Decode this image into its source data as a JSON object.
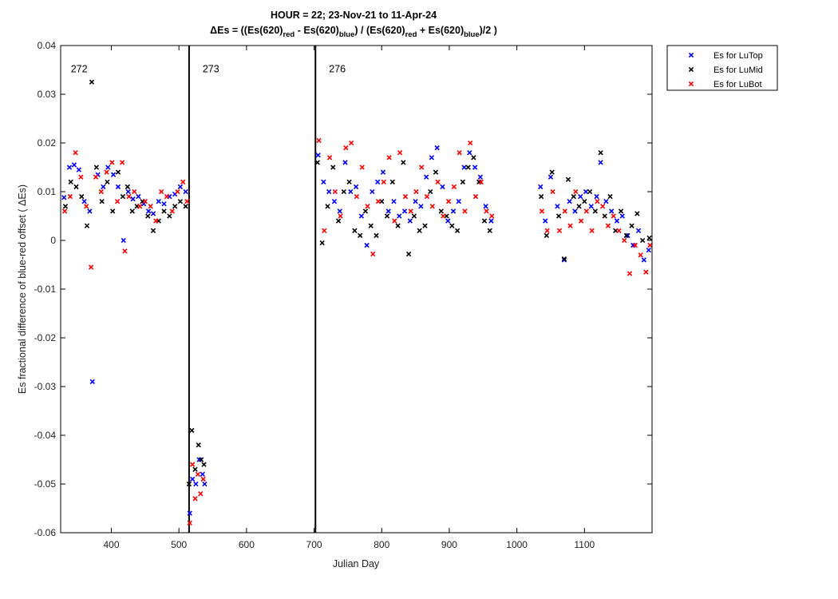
{
  "chart_data": {
    "type": "scatter",
    "title_line1": "HOUR = 22; 23-Nov-21 to 11-Apr-24",
    "title_line2": {
      "prefix": "ΔEs = ((Es(620)",
      "sub1": "red",
      "mid1": " - Es(620)",
      "sub2": "blue",
      "mid2": ") / (Es(620)",
      "sub3": "red",
      "mid3": " + Es(620)",
      "sub4": "blue",
      "suffix": ")/2  )"
    },
    "xlabel": "Julian Day",
    "ylabel": "Es fractional difference of blue-red offset (   ΔEs)",
    "xlim": [
      325,
      1200
    ],
    "ylim": [
      -0.06,
      0.04
    ],
    "xticks": [
      400,
      500,
      600,
      700,
      800,
      900,
      1000,
      1100
    ],
    "yticks": [
      -0.06,
      -0.05,
      -0.04,
      -0.03,
      -0.02,
      -0.01,
      0,
      0.01,
      0.02,
      0.03,
      0.04
    ],
    "ytick_labels": [
      "-0.06",
      "-0.05",
      "-0.04",
      "-0.03",
      "-0.02",
      "-0.01",
      "0",
      "0.01",
      "0.02",
      "0.03",
      "0.04"
    ],
    "grid": false,
    "legend_position": "outside-top-right",
    "vlines": [
      {
        "x": 515,
        "label": "273"
      },
      {
        "x": 702,
        "label": "276"
      }
    ],
    "annotations": [
      {
        "text": "272",
        "x": 340,
        "y": 0.0345
      },
      {
        "text": "273",
        "x": 535,
        "y": 0.0345
      },
      {
        "text": "276",
        "x": 722,
        "y": 0.0345
      }
    ],
    "series": [
      {
        "name": "Es for LuTop",
        "color": "#0000ff",
        "points": [
          [
            330,
            0.0088
          ],
          [
            338,
            0.015
          ],
          [
            345,
            0.0155
          ],
          [
            352,
            0.0145
          ],
          [
            360,
            0.008
          ],
          [
            368,
            0.006
          ],
          [
            372,
            -0.029
          ],
          [
            380,
            0.0135
          ],
          [
            388,
            0.011
          ],
          [
            395,
            0.015
          ],
          [
            403,
            0.0135
          ],
          [
            410,
            0.011
          ],
          [
            418,
            0.0
          ],
          [
            425,
            0.01
          ],
          [
            432,
            0.0085
          ],
          [
            440,
            0.009
          ],
          [
            448,
            0.0075
          ],
          [
            455,
            0.006
          ],
          [
            462,
            0.0055
          ],
          [
            470,
            0.008
          ],
          [
            478,
            0.0075
          ],
          [
            486,
            0.009
          ],
          [
            494,
            0.0095
          ],
          [
            502,
            0.011
          ],
          [
            510,
            0.01
          ],
          [
            516,
            -0.056
          ],
          [
            520,
            -0.049
          ],
          [
            525,
            -0.05
          ],
          [
            530,
            -0.045
          ],
          [
            535,
            -0.048
          ],
          [
            538,
            -0.05
          ],
          [
            706,
            0.0175
          ],
          [
            714,
            0.012
          ],
          [
            722,
            0.01
          ],
          [
            730,
            0.008
          ],
          [
            738,
            0.006
          ],
          [
            746,
            0.016
          ],
          [
            754,
            0.01
          ],
          [
            762,
            0.011
          ],
          [
            770,
            0.005
          ],
          [
            778,
            -0.001
          ],
          [
            786,
            0.01
          ],
          [
            794,
            0.012
          ],
          [
            802,
            0.014
          ],
          [
            810,
            0.006
          ],
          [
            818,
            0.008
          ],
          [
            826,
            0.005
          ],
          [
            834,
            0.006
          ],
          [
            842,
            0.004
          ],
          [
            850,
            0.008
          ],
          [
            858,
            0.007
          ],
          [
            866,
            0.013
          ],
          [
            874,
            0.017
          ],
          [
            882,
            0.019
          ],
          [
            890,
            0.011
          ],
          [
            898,
            0.004
          ],
          [
            906,
            0.006
          ],
          [
            914,
            0.008
          ],
          [
            922,
            0.015
          ],
          [
            930,
            0.018
          ],
          [
            938,
            0.015
          ],
          [
            946,
            0.013
          ],
          [
            954,
            0.007
          ],
          [
            962,
            0.004
          ],
          [
            1035,
            0.011
          ],
          [
            1042,
            0.004
          ],
          [
            1050,
            0.013
          ],
          [
            1060,
            0.007
          ],
          [
            1070,
            -0.004
          ],
          [
            1078,
            0.008
          ],
          [
            1086,
            0.006
          ],
          [
            1094,
            0.009
          ],
          [
            1102,
            0.01
          ],
          [
            1110,
            0.007
          ],
          [
            1118,
            0.009
          ],
          [
            1124,
            0.016
          ],
          [
            1132,
            0.008
          ],
          [
            1140,
            0.006
          ],
          [
            1148,
            0.004
          ],
          [
            1156,
            0.005
          ],
          [
            1164,
            0.001
          ],
          [
            1172,
            -0.001
          ],
          [
            1180,
            0.002
          ],
          [
            1188,
            -0.004
          ],
          [
            1195,
            -0.002
          ]
        ]
      },
      {
        "name": "Es for LuMid",
        "color": "#000000",
        "points": [
          [
            332,
            0.007
          ],
          [
            340,
            0.012
          ],
          [
            348,
            0.011
          ],
          [
            356,
            0.009
          ],
          [
            364,
            0.003
          ],
          [
            371,
            0.0325
          ],
          [
            378,
            0.015
          ],
          [
            386,
            0.008
          ],
          [
            394,
            0.012
          ],
          [
            402,
            0.006
          ],
          [
            410,
            0.014
          ],
          [
            417,
            0.009
          ],
          [
            424,
            0.011
          ],
          [
            431,
            0.006
          ],
          [
            438,
            0.007
          ],
          [
            446,
            0.008
          ],
          [
            454,
            0.005
          ],
          [
            462,
            0.002
          ],
          [
            470,
            0.004
          ],
          [
            478,
            0.006
          ],
          [
            486,
            0.005
          ],
          [
            494,
            0.007
          ],
          [
            502,
            0.008
          ],
          [
            510,
            0.007
          ],
          [
            515,
            -0.05
          ],
          [
            519,
            -0.039
          ],
          [
            524,
            -0.047
          ],
          [
            529,
            -0.042
          ],
          [
            533,
            -0.045
          ],
          [
            537,
            -0.046
          ],
          [
            705,
            0.016
          ],
          [
            712,
            -0.0005
          ],
          [
            720,
            0.007
          ],
          [
            728,
            0.015
          ],
          [
            736,
            0.004
          ],
          [
            744,
            0.01
          ],
          [
            752,
            0.012
          ],
          [
            760,
            0.002
          ],
          [
            768,
            0.001
          ],
          [
            776,
            0.006
          ],
          [
            784,
            0.003
          ],
          [
            792,
            0.001
          ],
          [
            800,
            0.008
          ],
          [
            808,
            0.005
          ],
          [
            816,
            0.012
          ],
          [
            824,
            0.003
          ],
          [
            832,
            0.016
          ],
          [
            840,
            -0.0028
          ],
          [
            848,
            0.005
          ],
          [
            856,
            0.002
          ],
          [
            864,
            0.003
          ],
          [
            872,
            0.01
          ],
          [
            880,
            0.014
          ],
          [
            888,
            0.006
          ],
          [
            896,
            0.005
          ],
          [
            904,
            0.003
          ],
          [
            912,
            0.002
          ],
          [
            920,
            0.012
          ],
          [
            928,
            0.015
          ],
          [
            936,
            0.017
          ],
          [
            944,
            0.012
          ],
          [
            952,
            0.004
          ],
          [
            960,
            0.002
          ],
          [
            1036,
            0.009
          ],
          [
            1044,
            0.001
          ],
          [
            1052,
            0.014
          ],
          [
            1062,
            0.005
          ],
          [
            1070,
            -0.0038
          ],
          [
            1076,
            0.0125
          ],
          [
            1084,
            0.009
          ],
          [
            1092,
            0.007
          ],
          [
            1100,
            0.008
          ],
          [
            1108,
            0.01
          ],
          [
            1116,
            0.006
          ],
          [
            1124,
            0.018
          ],
          [
            1130,
            0.005
          ],
          [
            1138,
            0.009
          ],
          [
            1146,
            0.002
          ],
          [
            1154,
            0.006
          ],
          [
            1162,
            0.001
          ],
          [
            1170,
            0.003
          ],
          [
            1178,
            0.0055
          ],
          [
            1186,
            0.0
          ],
          [
            1196,
            0.0005
          ]
        ]
      },
      {
        "name": "Es for LuBot",
        "color": "#ff0000",
        "points": [
          [
            331,
            0.006
          ],
          [
            339,
            0.009
          ],
          [
            347,
            0.018
          ],
          [
            355,
            0.013
          ],
          [
            363,
            0.007
          ],
          [
            370,
            -0.0055
          ],
          [
            377,
            0.013
          ],
          [
            385,
            0.01
          ],
          [
            393,
            0.014
          ],
          [
            401,
            0.016
          ],
          [
            409,
            0.008
          ],
          [
            416,
            0.016
          ],
          [
            420,
            -0.0022
          ],
          [
            426,
            0.009
          ],
          [
            434,
            0.01
          ],
          [
            442,
            0.007
          ],
          [
            450,
            0.008
          ],
          [
            458,
            0.007
          ],
          [
            466,
            0.004
          ],
          [
            474,
            0.01
          ],
          [
            482,
            0.009
          ],
          [
            490,
            0.006
          ],
          [
            498,
            0.01
          ],
          [
            506,
            0.012
          ],
          [
            512,
            0.008
          ],
          [
            516,
            -0.058
          ],
          [
            520,
            -0.046
          ],
          [
            524,
            -0.053
          ],
          [
            528,
            -0.048
          ],
          [
            532,
            -0.052
          ],
          [
            536,
            -0.049
          ],
          [
            707,
            0.0205
          ],
          [
            715,
            0.002
          ],
          [
            723,
            0.017
          ],
          [
            731,
            0.01
          ],
          [
            739,
            0.005
          ],
          [
            747,
            0.019
          ],
          [
            755,
            0.02
          ],
          [
            763,
            0.009
          ],
          [
            771,
            0.015
          ],
          [
            779,
            0.007
          ],
          [
            787,
            -0.0028
          ],
          [
            795,
            0.008
          ],
          [
            803,
            0.012
          ],
          [
            811,
            0.017
          ],
          [
            819,
            0.004
          ],
          [
            827,
            0.018
          ],
          [
            835,
            0.009
          ],
          [
            843,
            0.006
          ],
          [
            851,
            0.01
          ],
          [
            859,
            0.015
          ],
          [
            867,
            0.009
          ],
          [
            875,
            0.007
          ],
          [
            883,
            0.012
          ],
          [
            891,
            0.005
          ],
          [
            899,
            0.008
          ],
          [
            907,
            0.011
          ],
          [
            915,
            0.018
          ],
          [
            923,
            0.006
          ],
          [
            931,
            0.02
          ],
          [
            939,
            0.009
          ],
          [
            947,
            0.012
          ],
          [
            955,
            0.006
          ],
          [
            963,
            0.005
          ],
          [
            1037,
            0.006
          ],
          [
            1045,
            0.002
          ],
          [
            1053,
            0.01
          ],
          [
            1063,
            0.002
          ],
          [
            1071,
            0.006
          ],
          [
            1079,
            0.003
          ],
          [
            1087,
            0.01
          ],
          [
            1095,
            0.004
          ],
          [
            1103,
            0.006
          ],
          [
            1111,
            0.002
          ],
          [
            1119,
            0.008
          ],
          [
            1127,
            0.007
          ],
          [
            1135,
            0.003
          ],
          [
            1143,
            0.005
          ],
          [
            1151,
            0.002
          ],
          [
            1159,
            0.0
          ],
          [
            1167,
            -0.0068
          ],
          [
            1175,
            -0.001
          ],
          [
            1183,
            -0.003
          ],
          [
            1191,
            -0.0065
          ],
          [
            1197,
            -0.001
          ]
        ]
      }
    ]
  }
}
